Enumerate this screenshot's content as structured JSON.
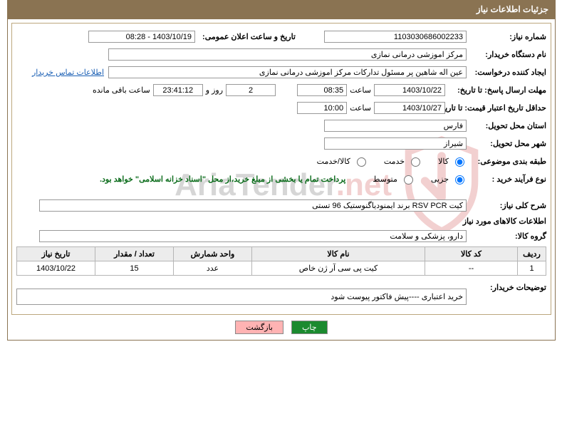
{
  "header": {
    "title": "جزئیات اطلاعات نیاز"
  },
  "fields": {
    "need_no_label": "شماره نیاز:",
    "need_no": "1103030686002233",
    "announce_label": "تاریخ و ساعت اعلان عمومی:",
    "announce_val": "1403/10/19 - 08:28",
    "buyer_org_label": "نام دستگاه خریدار:",
    "buyer_org": "مرکز اموزشی درمانی نمازی",
    "creator_label": "ایجاد کننده درخواست:",
    "creator": "عین اله شاهین پر مسئول تدارکات مرکز اموزشی درمانی نمازی",
    "contact_link": "اطلاعات تماس خریدار",
    "deadline_label": "مهلت ارسال پاسخ: تا تاریخ:",
    "deadline_date": "1403/10/22",
    "time_label": "ساعت",
    "deadline_time": "08:35",
    "days_val": "2",
    "days_and": "روز و",
    "remain_time": "23:41:12",
    "remain_label": "ساعت باقی مانده",
    "validity_label": "حداقل تاریخ اعتبار قیمت: تا تاریخ:",
    "validity_date": "1403/10/27",
    "validity_time": "10:00",
    "province_label": "استان محل تحویل:",
    "province": "فارس",
    "city_label": "شهر محل تحویل:",
    "city": "شیراز",
    "category_label": "طبقه بندی موضوعی:",
    "cat_goods": "کالا",
    "cat_service": "خدمت",
    "cat_both": "کالا/خدمت",
    "process_label": "نوع فرآیند خرید :",
    "proc_partial": "جزیی",
    "proc_medium": "متوسط",
    "treasury_note": "پرداخت تمام یا بخشی از مبلغ خرید،از محل \"اسناد خزانه اسلامی\" خواهد بود.",
    "desc_label": "شرح کلی نیاز:",
    "desc_val": "کیت RSV PCR برند ایمنودیاگنوستیک 96 تستی",
    "goods_section": "اطلاعات کالاهای مورد نیاز",
    "group_label": "گروه کالا:",
    "group_val": "دارو، پزشکی و سلامت",
    "notes_label": "توضیحات خریدار:",
    "notes_val": "خرید اعتباری ----پیش فاکتور پیوست شود"
  },
  "table": {
    "headers": [
      "ردیف",
      "کد کالا",
      "نام کالا",
      "واحد شمارش",
      "تعداد / مقدار",
      "تاریخ نیاز"
    ],
    "rows": [
      [
        "1",
        "--",
        "کیت پی سی آر ژن خاص",
        "عدد",
        "15",
        "1403/10/22"
      ]
    ],
    "col_widths": [
      "40px",
      "130px",
      "auto",
      "110px",
      "110px",
      "110px"
    ]
  },
  "buttons": {
    "print": "چاپ",
    "back": "بازگشت"
  },
  "watermark": {
    "text_pre": "AriaTender",
    "text_suf": ".net"
  },
  "colors": {
    "header_bg": "#8a7352",
    "border": "#bca77d",
    "link": "#1a5fb4",
    "green": "#0a6b1a"
  }
}
